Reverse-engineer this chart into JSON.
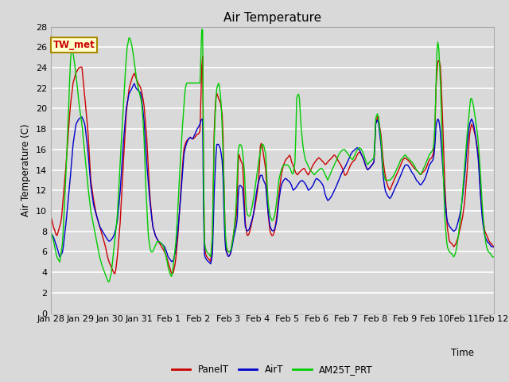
{
  "title": "Air Temperature",
  "xlabel": "Time",
  "ylabel": "Air Temperature (C)",
  "annotation": "TW_met",
  "legend_labels": [
    "PanelT",
    "AirT",
    "AM25T_PRT"
  ],
  "line_colors": [
    "#cc0000",
    "#0000cc",
    "#00cc00"
  ],
  "ylim": [
    0,
    28
  ],
  "yticks": [
    0,
    2,
    4,
    6,
    8,
    10,
    12,
    14,
    16,
    18,
    20,
    22,
    24,
    26,
    28
  ],
  "bg_color": "#d9d9d9",
  "plot_bg_color": "#d9d9d9",
  "grid_color": "white",
  "annotation_bg": "#ffffcc",
  "annotation_border": "#aa8800",
  "annotation_text_color": "#cc0000",
  "num_points": 500,
  "x_start": 0,
  "x_end": 15,
  "xtick_labels": [
    "Jan 28",
    "Jan 29",
    "Jan 30",
    "Jan 31",
    "Feb 1",
    "Feb 2",
    "Feb 3",
    "Feb 4",
    "Feb 5",
    "Feb 6",
    "Feb 7",
    "Feb 8",
    "Feb 9",
    "Feb 10",
    "Feb 11",
    "Feb 12"
  ],
  "xtick_positions": [
    0,
    1,
    2,
    3,
    4,
    5,
    6,
    7,
    8,
    9,
    10,
    11,
    12,
    13,
    14,
    15
  ]
}
